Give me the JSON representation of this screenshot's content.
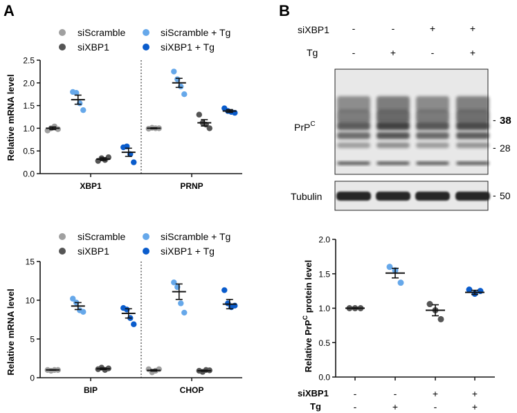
{
  "figure": {
    "panel_a_letter": "A",
    "panel_b_letter": "B"
  },
  "colors": {
    "siScramble": "#a0a0a0",
    "siXBP1": "#555555",
    "siScramble_Tg": "#66a8ea",
    "siXBP1_Tg": "#0a5ccc",
    "axis": "#111111",
    "blot_background": "#e8e8e8",
    "blot_band": "#1a1a1a"
  },
  "chart_data": [
    {
      "id": "A-top",
      "type": "scatter",
      "ylabel": "Relative mRNA level",
      "ylim": [
        0,
        2.5
      ],
      "yticks": [
        0.0,
        0.5,
        1.0,
        1.5,
        2.0,
        2.5
      ],
      "ytick_labels": [
        "0.0",
        "0.5",
        "1.0",
        "1.5",
        "2.0",
        "2.5"
      ],
      "groups": [
        "XBP1",
        "PRNP"
      ],
      "legend": [
        "siScramble",
        "siXBP1",
        "siScramble + Tg",
        "siXBP1 + Tg"
      ],
      "series_order": [
        "siScramble",
        "siScramble + Tg",
        "siXBP1",
        "siXBP1 + Tg"
      ],
      "series": [
        {
          "group": "XBP1",
          "name": "siScramble",
          "points": [
            0.95,
            1.0,
            1.04,
            0.98
          ],
          "mean": 1.0,
          "sem": 0.03
        },
        {
          "group": "XBP1",
          "name": "siScramble + Tg",
          "points": [
            1.8,
            1.78,
            1.55,
            1.4
          ],
          "mean": 1.63,
          "sem": 0.1
        },
        {
          "group": "XBP1",
          "name": "siXBP1",
          "points": [
            0.28,
            0.34,
            0.3,
            0.36
          ],
          "mean": 0.32,
          "sem": 0.03
        },
        {
          "group": "XBP1",
          "name": "siXBP1 + Tg",
          "points": [
            0.58,
            0.6,
            0.43,
            0.25
          ],
          "mean": 0.47,
          "sem": 0.09
        },
        {
          "group": "PRNP",
          "name": "siScramble",
          "points": [
            0.99,
            1.01,
            1.0,
            1.0
          ],
          "mean": 1.0,
          "sem": 0.01
        },
        {
          "group": "PRNP",
          "name": "siScramble + Tg",
          "points": [
            2.25,
            2.08,
            1.92,
            1.75
          ],
          "mean": 2.0,
          "sem": 0.1
        },
        {
          "group": "PRNP",
          "name": "siXBP1",
          "points": [
            1.3,
            1.12,
            1.08,
            1.0
          ],
          "mean": 1.12,
          "sem": 0.07
        },
        {
          "group": "PRNP",
          "name": "siXBP1 + Tg",
          "points": [
            1.44,
            1.38,
            1.36,
            1.34
          ],
          "mean": 1.38,
          "sem": 0.03
        }
      ]
    },
    {
      "id": "A-bottom",
      "type": "scatter",
      "ylabel": "Relative mRNA level",
      "ylim": [
        0,
        15
      ],
      "yticks": [
        0,
        5,
        10,
        15
      ],
      "ytick_labels": [
        "0",
        "5",
        "10",
        "15"
      ],
      "groups": [
        "BIP",
        "CHOP"
      ],
      "legend": [
        "siScramble",
        "siXBP1",
        "siScramble + Tg",
        "siXBP1 + Tg"
      ],
      "series_order": [
        "siScramble",
        "siScramble + Tg",
        "siXBP1",
        "siXBP1 + Tg"
      ],
      "series": [
        {
          "group": "BIP",
          "name": "siScramble",
          "points": [
            1.0,
            0.9,
            1.0,
            1.0
          ],
          "mean": 1.0,
          "sem": 0.03
        },
        {
          "group": "BIP",
          "name": "siScramble + Tg",
          "points": [
            10.2,
            9.7,
            8.7,
            8.5
          ],
          "mean": 9.25,
          "sem": 0.45
        },
        {
          "group": "BIP",
          "name": "siXBP1",
          "points": [
            1.1,
            1.3,
            1.0,
            1.2
          ],
          "mean": 1.15,
          "sem": 0.1
        },
        {
          "group": "BIP",
          "name": "siXBP1 + Tg",
          "points": [
            9.0,
            8.8,
            7.7,
            6.9
          ],
          "mean": 8.3,
          "sem": 0.6
        },
        {
          "group": "CHOP",
          "name": "siScramble",
          "points": [
            1.1,
            0.7,
            0.9,
            1.1
          ],
          "mean": 0.95,
          "sem": 0.1
        },
        {
          "group": "CHOP",
          "name": "siScramble + Tg",
          "points": [
            12.3,
            11.7,
            9.6,
            8.4
          ],
          "mean": 11.1,
          "sem": 1.0
        },
        {
          "group": "CHOP",
          "name": "siXBP1",
          "points": [
            0.9,
            0.75,
            1.0,
            0.95
          ],
          "mean": 0.9,
          "sem": 0.07
        },
        {
          "group": "CHOP",
          "name": "siXBP1 + Tg",
          "points": [
            11.3,
            9.6,
            9.1,
            9.3
          ],
          "mean": 9.5,
          "sem": 0.6
        }
      ]
    },
    {
      "id": "B-quant",
      "type": "scatter",
      "ylabel": "Relative PrP",
      "ylabel_sup": "C",
      "ylabel_end": " protein level",
      "ylim": [
        0,
        2.0
      ],
      "yticks": [
        0.0,
        0.5,
        1.0,
        1.5,
        2.0
      ],
      "ytick_labels": [
        "0.0",
        "0.5",
        "1.0",
        "1.5",
        "2.0"
      ],
      "conditions": [
        {
          "siXBP1": "-",
          "Tg": "-",
          "points": [
            1.0,
            1.0,
            1.0
          ],
          "mean": 1.0,
          "sem": 0.005
        },
        {
          "siXBP1": "-",
          "Tg": "+",
          "points": [
            1.6,
            1.55,
            1.37
          ],
          "mean": 1.51,
          "sem": 0.07
        },
        {
          "siXBP1": "+",
          "Tg": "-",
          "points": [
            1.06,
            0.97,
            0.84
          ],
          "mean": 0.97,
          "sem": 0.08
        },
        {
          "siXBP1": "+",
          "Tg": "+",
          "points": [
            1.27,
            1.21,
            1.25
          ],
          "mean": 1.23,
          "sem": 0.03
        }
      ],
      "row_labels": [
        "siXBP1",
        "Tg"
      ],
      "point_color": "#555555"
    }
  ],
  "blot": {
    "header_labels": [
      "siXBP1",
      "Tg"
    ],
    "lanes": [
      {
        "siXBP1": "-",
        "Tg": "-"
      },
      {
        "siXBP1": "-",
        "Tg": "+"
      },
      {
        "siXBP1": "+",
        "Tg": "-"
      },
      {
        "siXBP1": "+",
        "Tg": "+"
      }
    ],
    "prp_label": "PrP",
    "prp_label_sup": "C",
    "tubulin_label": "Tubulin",
    "markers": [
      {
        "label": "38",
        "dash": "-"
      },
      {
        "label": "28",
        "dash": "-"
      }
    ],
    "tubulin_marker": {
      "label": "50",
      "dash": "-"
    },
    "lane_intensity": [
      0.8,
      0.95,
      0.82,
      0.9
    ]
  }
}
